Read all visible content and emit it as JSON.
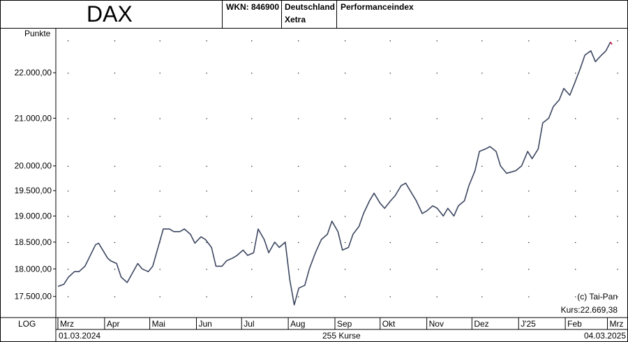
{
  "header": {
    "title": "DAX",
    "wkn": "WKN: 846900",
    "country": "Deutschland",
    "exchange": "Xetra",
    "index_type": "Performanceindex"
  },
  "footer": {
    "scale_mode": "LOG",
    "start_date": "01.03.2024",
    "count": "255 Kurse",
    "end_date": "04.03.2025"
  },
  "annotations": {
    "copyright": "(c) Tai-Pan",
    "last_price": "Kurs:22.669,38"
  },
  "colors": {
    "line": "#3c4660",
    "last": "#cc0033",
    "grid": "#000000"
  },
  "chart_data": {
    "type": "line",
    "ylabel": "Punkte",
    "yscale": "log",
    "ylim": [
      17150,
      23000
    ],
    "y_ticks": [
      17500,
      18000,
      18500,
      19000,
      19500,
      20000,
      21000,
      22000
    ],
    "y_tick_labels": [
      "17.500,00",
      "18.000,00",
      "18.500,00",
      "19.000,00",
      "19.500,00",
      "20.000,00",
      "21.000,00",
      "22.000,00"
    ],
    "x_months": [
      "Mrz",
      "Apr",
      "Mai",
      "Jun",
      "Jul",
      "Aug",
      "Sep",
      "Okt",
      "Nov",
      "Dez",
      "J'25",
      "Feb",
      "Mrz"
    ],
    "x_month_starts": [
      "2024-03-01",
      "2024-04-01",
      "2024-05-01",
      "2024-06-01",
      "2024-07-01",
      "2024-08-01",
      "2024-09-01",
      "2024-10-01",
      "2024-11-01",
      "2024-12-01",
      "2025-01-01",
      "2025-02-01",
      "2025-03-01"
    ],
    "x_range": [
      "2024-03-01",
      "2025-03-04"
    ],
    "grid": true,
    "series": [
      {
        "x": [
          "2024-03-01",
          "2024-03-05",
          "2024-03-08",
          "2024-03-12",
          "2024-03-15",
          "2024-03-19",
          "2024-03-22",
          "2024-03-26",
          "2024-03-28",
          "2024-04-03",
          "2024-04-05",
          "2024-04-09",
          "2024-04-12",
          "2024-04-16",
          "2024-04-19",
          "2024-04-23",
          "2024-04-26",
          "2024-04-30",
          "2024-05-03",
          "2024-05-07",
          "2024-05-10",
          "2024-05-14",
          "2024-05-17",
          "2024-05-21",
          "2024-05-24",
          "2024-05-28",
          "2024-05-31",
          "2024-06-04",
          "2024-06-07",
          "2024-06-11",
          "2024-06-14",
          "2024-06-18",
          "2024-06-21",
          "2024-06-25",
          "2024-06-28",
          "2024-07-02",
          "2024-07-05",
          "2024-07-09",
          "2024-07-12",
          "2024-07-16",
          "2024-07-19",
          "2024-07-23",
          "2024-07-26",
          "2024-07-30",
          "2024-08-02",
          "2024-08-05",
          "2024-08-08",
          "2024-08-12",
          "2024-08-15",
          "2024-08-19",
          "2024-08-23",
          "2024-08-27",
          "2024-08-30",
          "2024-09-03",
          "2024-09-06",
          "2024-09-10",
          "2024-09-13",
          "2024-09-17",
          "2024-09-20",
          "2024-09-24",
          "2024-09-27",
          "2024-10-01",
          "2024-10-04",
          "2024-10-08",
          "2024-10-11",
          "2024-10-15",
          "2024-10-18",
          "2024-10-22",
          "2024-10-25",
          "2024-10-29",
          "2024-11-01",
          "2024-11-05",
          "2024-11-08",
          "2024-11-12",
          "2024-11-15",
          "2024-11-19",
          "2024-11-22",
          "2024-11-26",
          "2024-11-29",
          "2024-12-03",
          "2024-12-06",
          "2024-12-10",
          "2024-12-13",
          "2024-12-17",
          "2024-12-20",
          "2024-12-24",
          "2024-12-30",
          "2025-01-03",
          "2025-01-07",
          "2025-01-10",
          "2025-01-14",
          "2025-01-17",
          "2025-01-21",
          "2025-01-24",
          "2025-01-28",
          "2025-01-31",
          "2025-02-04",
          "2025-02-07",
          "2025-02-11",
          "2025-02-14",
          "2025-02-18",
          "2025-02-21",
          "2025-02-25",
          "2025-02-28",
          "2025-03-03",
          "2025-03-04"
        ],
        "y": [
          17680,
          17720,
          17850,
          17950,
          17950,
          18050,
          18220,
          18450,
          18480,
          18200,
          18150,
          18100,
          17850,
          17750,
          17900,
          18100,
          18000,
          17950,
          18050,
          18450,
          18750,
          18750,
          18700,
          18700,
          18750,
          18650,
          18480,
          18600,
          18550,
          18400,
          18050,
          18050,
          18150,
          18200,
          18250,
          18350,
          18250,
          18300,
          18750,
          18550,
          18300,
          18500,
          18400,
          18500,
          17800,
          17350,
          17650,
          17700,
          18000,
          18300,
          18550,
          18650,
          18900,
          18700,
          18350,
          18400,
          18650,
          18800,
          19050,
          19300,
          19450,
          19250,
          19150,
          19300,
          19400,
          19600,
          19650,
          19450,
          19300,
          19050,
          19100,
          19200,
          19150,
          19000,
          19150,
          19000,
          19200,
          19300,
          19600,
          19900,
          20300,
          20350,
          20400,
          20300,
          20000,
          19850,
          19900,
          20000,
          20300,
          20150,
          20350,
          20900,
          21000,
          21250,
          21400,
          21650,
          21500,
          21750,
          22100,
          22400,
          22500,
          22250,
          22400,
          22500,
          22700,
          22650
        ]
      }
    ]
  }
}
